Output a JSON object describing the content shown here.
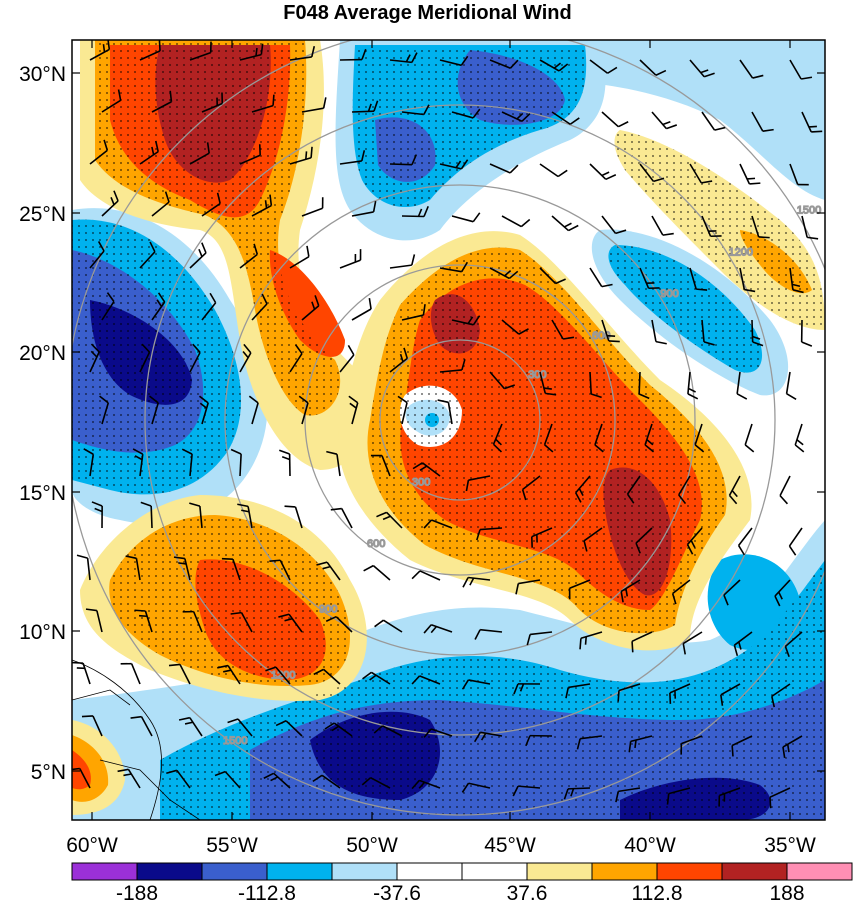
{
  "title": "F048 Average Meridional Wind",
  "map": {
    "type": "filled-contour map with wind barbs",
    "lon_range": [
      -60,
      -33
    ],
    "lat_range": [
      3,
      31
    ],
    "x_ticks": [
      "60°W",
      "55°W",
      "50°W",
      "45°W",
      "40°W",
      "35°W"
    ],
    "y_ticks": [
      "30°N",
      "25°N",
      "20°N",
      "15°N",
      "10°N",
      "5°N"
    ],
    "stippling": "dotted hatching over regions of larger magnitude",
    "range_rings": [
      "300",
      "600",
      "900",
      "1200",
      "1500"
    ]
  },
  "colorbar": {
    "labels": [
      "-188",
      "-112.8",
      "-37.6",
      "37.6",
      "112.8",
      "188"
    ],
    "colors": [
      "#9b30d8",
      "#0a0a8a",
      "#3a5fcd",
      "#00b2ee",
      "#b0e0f8",
      "#ffffff",
      "#ffffff",
      "#fae993",
      "#ffa500",
      "#ff4500",
      "#b22222",
      "#ff8fb4"
    ]
  }
}
